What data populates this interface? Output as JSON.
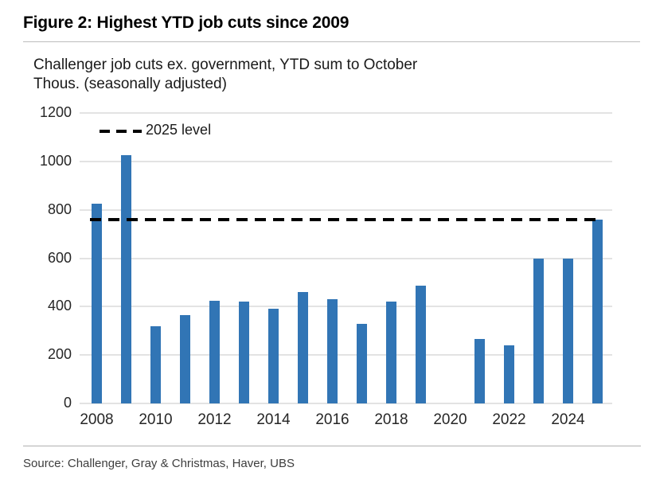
{
  "figure": {
    "title": "Figure 2: Highest YTD job cuts since 2009",
    "subtitle_line1": "Challenger job cuts ex. government, YTD sum to October",
    "subtitle_line2": "Thous. (seasonally adjusted)",
    "source": "Source: Challenger, Gray & Christmas, Haver, UBS"
  },
  "chart_data": {
    "type": "bar",
    "title": "Challenger job cuts ex. government, YTD sum to October",
    "ylabel": "Thous. (seasonally adjusted)",
    "categories": [
      "2008",
      "2009",
      "2010",
      "2011",
      "2012",
      "2013",
      "2014",
      "2015",
      "2016",
      "2017",
      "2018",
      "2019",
      "2020",
      "2021",
      "2022",
      "2023",
      "2024",
      "2025"
    ],
    "values": [
      825,
      1025,
      320,
      365,
      425,
      420,
      390,
      460,
      430,
      330,
      420,
      485,
      null,
      265,
      240,
      600,
      600,
      760
    ],
    "ylim": [
      0,
      1200
    ],
    "yticks": [
      0,
      200,
      400,
      600,
      800,
      1000,
      1200
    ],
    "xticks": [
      "2008",
      "2010",
      "2012",
      "2014",
      "2016",
      "2018",
      "2020",
      "2022",
      "2024"
    ],
    "grid": true,
    "bar_color": "#3175b5",
    "gridline_color": "#e3e3e3",
    "reference_line": {
      "label": "2025 level",
      "value": 760,
      "style": "dashed",
      "color": "#000000"
    },
    "legend": {
      "label": "2025 level",
      "position": "top-left-inside",
      "style": "dashed"
    }
  }
}
